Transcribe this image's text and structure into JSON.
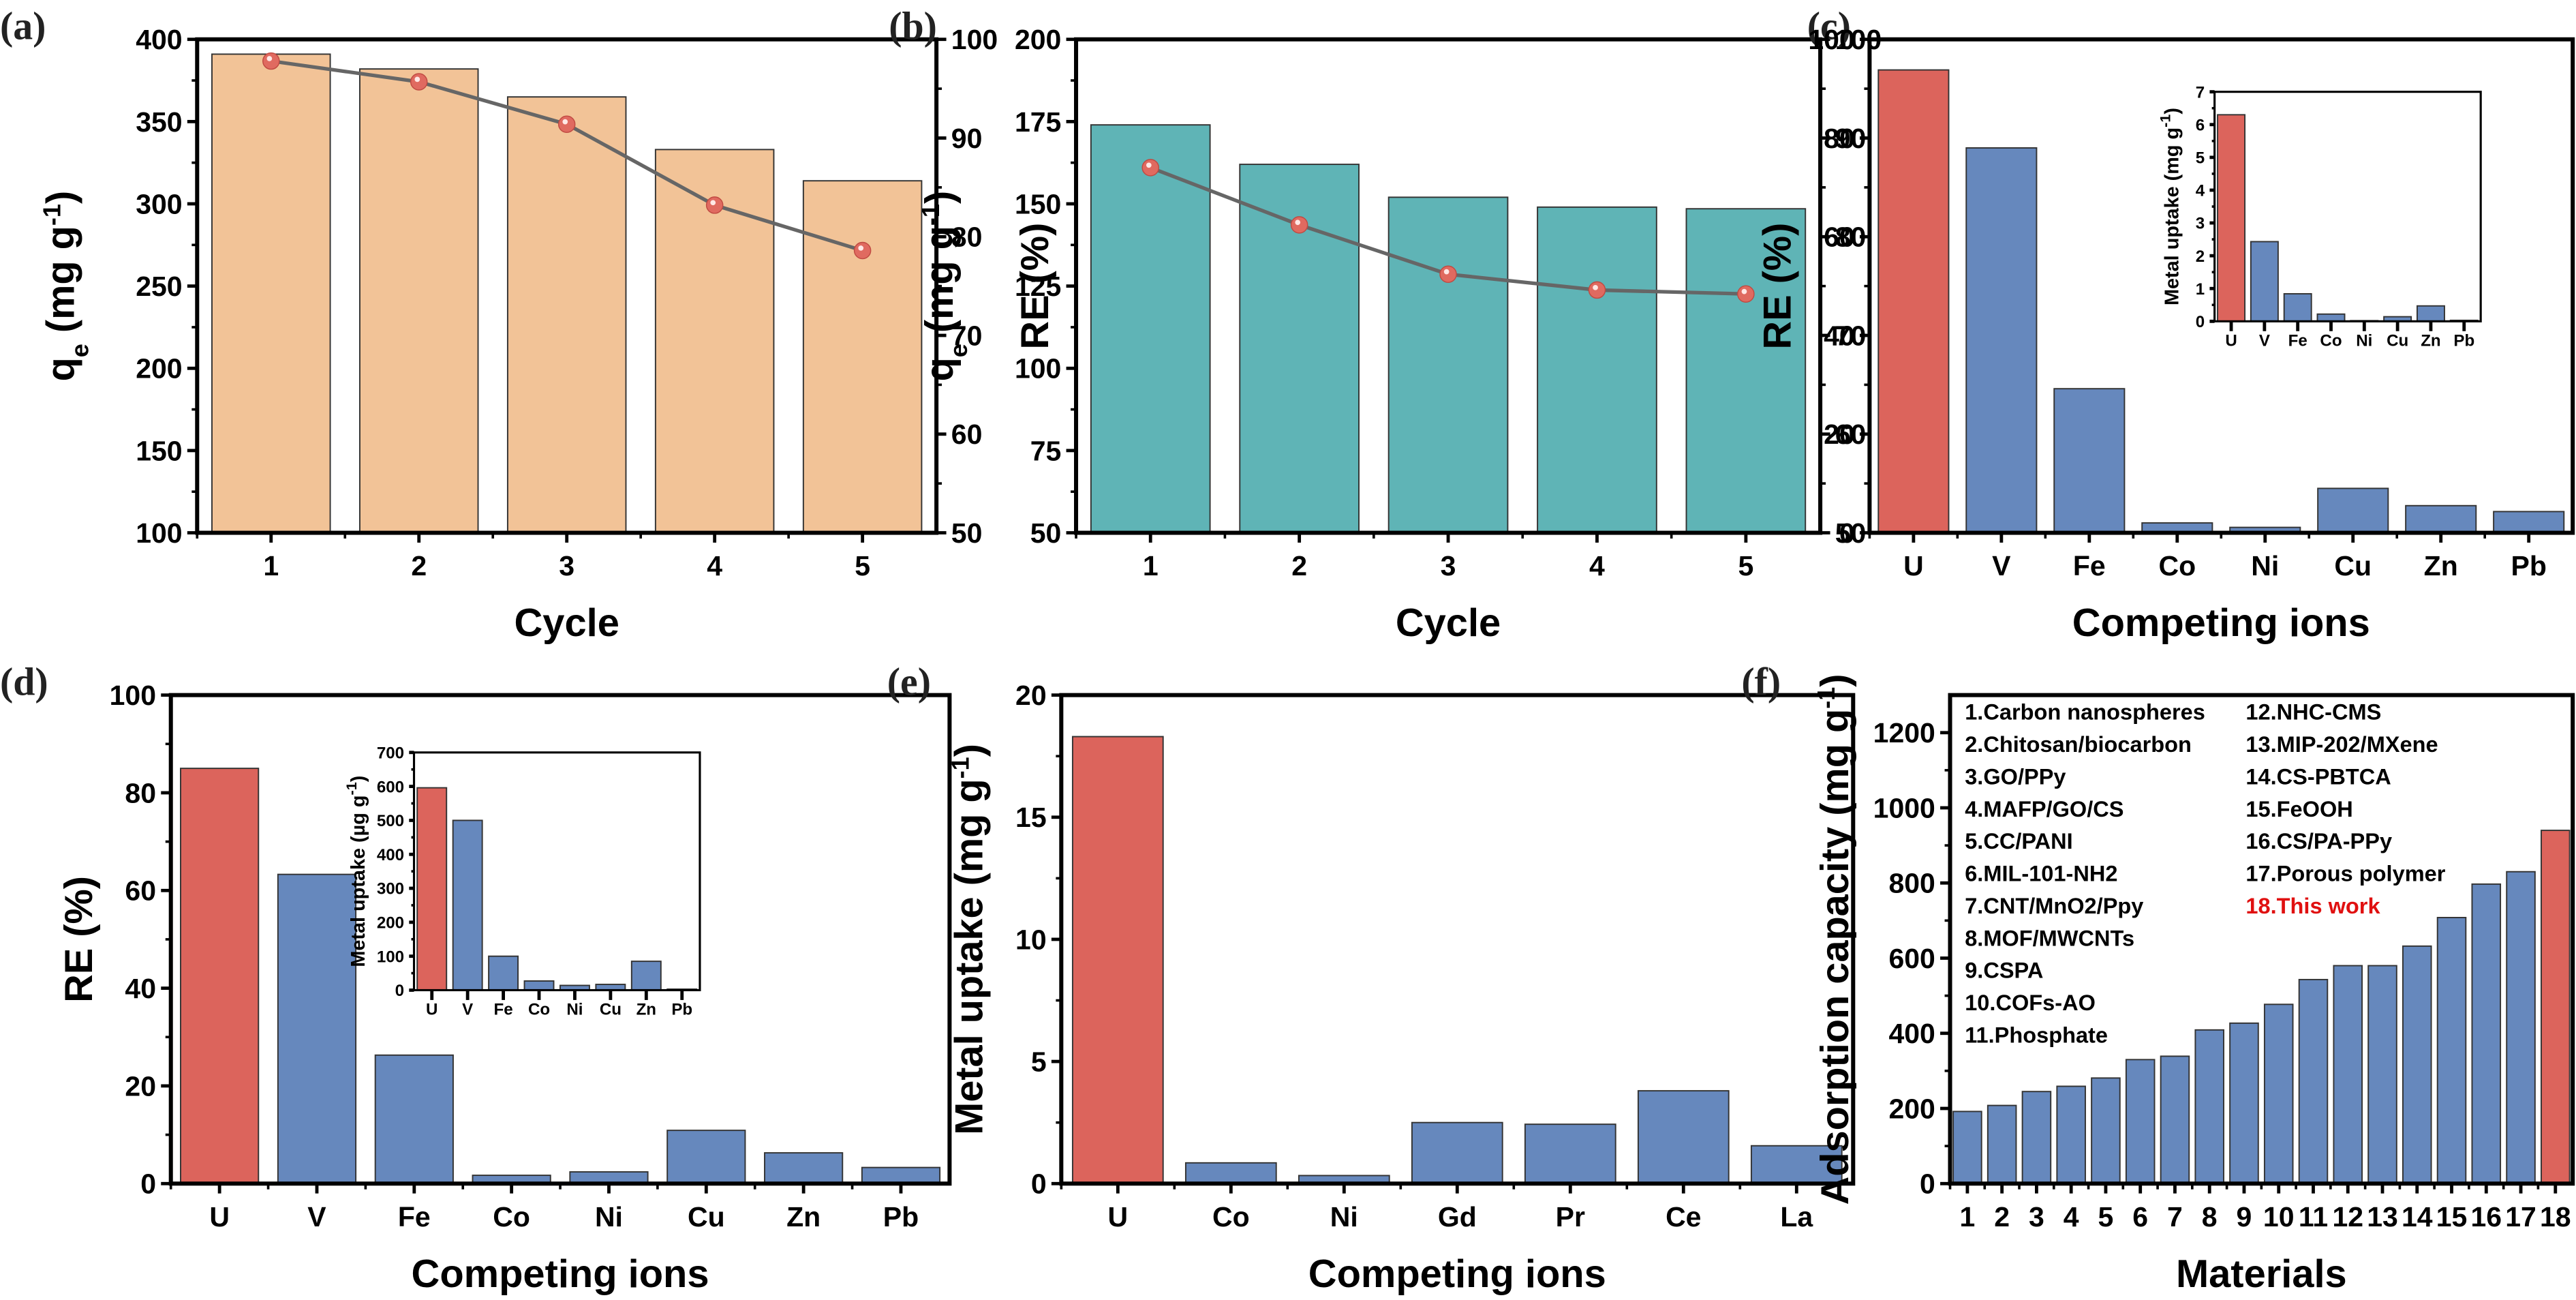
{
  "colors": {
    "peach": "#f2c397",
    "teal": "#5fb4b6",
    "red": "#dc645c",
    "blue": "#6688bd",
    "line": "#666666",
    "marker": "#e06a60",
    "highlight_text": "#e01010"
  },
  "chart_data": [
    {
      "id": "a",
      "panel_label": "(a)",
      "type": "bar",
      "title": "",
      "xlabel": "Cycle",
      "ylabel": "q",
      "ylabel_sub": "e",
      "ylabel_unit": " (mg g",
      "ylabel_sup": "-1",
      "ylabel_close": ")",
      "y2label": "RE (%)",
      "categories": [
        "1",
        "2",
        "3",
        "4",
        "5"
      ],
      "ylim": [
        100,
        400
      ],
      "yticks": [
        "100",
        "150",
        "200",
        "250",
        "300",
        "350",
        "400"
      ],
      "y2lim": [
        50,
        100
      ],
      "y2ticks": [
        "50",
        "60",
        "70",
        "80",
        "90",
        "100"
      ],
      "series": [
        {
          "name": "qe",
          "kind": "bar",
          "values": [
            391,
            382,
            365,
            333,
            314
          ]
        },
        {
          "name": "RE",
          "kind": "line",
          "axis": "right",
          "values": [
            97.8,
            95.7,
            91.4,
            83.2,
            78.6
          ]
        }
      ]
    },
    {
      "id": "b",
      "panel_label": "(b)",
      "type": "bar",
      "title": "",
      "xlabel": "Cycle",
      "ylabel": "q",
      "ylabel_sub": "e",
      "ylabel_unit": " (mg g",
      "ylabel_sup": "-1",
      "ylabel_close": ")",
      "y2label": "RE (%)",
      "categories": [
        "1",
        "2",
        "3",
        "4",
        "5"
      ],
      "ylim": [
        50,
        200
      ],
      "yticks": [
        "50",
        "75",
        "100",
        "125",
        "150",
        "175",
        "200"
      ],
      "y2lim": [
        50,
        100
      ],
      "y2ticks": [
        "50",
        "60",
        "70",
        "80",
        "90",
        "100"
      ],
      "series": [
        {
          "name": "qe",
          "kind": "bar",
          "values": [
            174,
            162,
            152,
            149,
            148.5
          ]
        },
        {
          "name": "RE",
          "kind": "line",
          "axis": "right",
          "values": [
            87.0,
            81.2,
            76.2,
            74.6,
            74.2
          ]
        }
      ]
    },
    {
      "id": "c",
      "panel_label": "(c)",
      "type": "bar",
      "title": "",
      "xlabel": "Competing ions",
      "ylabel": "RE (%)",
      "categories": [
        "U",
        "V",
        "Fe",
        "Co",
        "Ni",
        "Cu",
        "Zn",
        "Pb"
      ],
      "ylim": [
        0,
        100
      ],
      "yticks": [
        "0",
        "20",
        "40",
        "60",
        "80",
        "100"
      ],
      "values": [
        93.8,
        78.0,
        29.2,
        2.0,
        1.1,
        9.0,
        5.5,
        4.3
      ],
      "inset": {
        "ylabel": "Metal uptake (mg g",
        "ylabel_sup": "-1",
        "ylabel_close": ")",
        "categories": [
          "U",
          "V",
          "Fe",
          "Co",
          "Ni",
          "Cu",
          "Zn",
          "Pb"
        ],
        "ylim": [
          0,
          7
        ],
        "yticks": [
          "0",
          "1",
          "2",
          "3",
          "4",
          "5",
          "6",
          "7"
        ],
        "values": [
          6.3,
          2.43,
          0.84,
          0.22,
          0.02,
          0.14,
          0.47,
          0.03
        ]
      }
    },
    {
      "id": "d",
      "panel_label": "(d)",
      "type": "bar",
      "title": "",
      "xlabel": "Competing ions",
      "ylabel": "RE (%)",
      "categories": [
        "U",
        "V",
        "Fe",
        "Co",
        "Ni",
        "Cu",
        "Zn",
        "Pb"
      ],
      "ylim": [
        0,
        100
      ],
      "yticks": [
        "0",
        "20",
        "40",
        "60",
        "80",
        "100"
      ],
      "values": [
        85.0,
        63.3,
        26.3,
        1.7,
        2.4,
        10.9,
        6.3,
        3.3
      ],
      "inset": {
        "ylabel": "Metal uptake (µg g",
        "ylabel_sup": "-1",
        "ylabel_close": ")",
        "categories": [
          "U",
          "V",
          "Fe",
          "Co",
          "Ni",
          "Cu",
          "Zn",
          "Pb"
        ],
        "ylim": [
          0,
          700
        ],
        "yticks": [
          "0",
          "100",
          "200",
          "300",
          "400",
          "500",
          "600",
          "700"
        ],
        "values": [
          596,
          500,
          100,
          27,
          14,
          17,
          85,
          3
        ]
      }
    },
    {
      "id": "e",
      "panel_label": "(e)",
      "type": "bar",
      "title": "",
      "xlabel": "Competing ions",
      "ylabel": "Metal uptake (mg g",
      "ylabel_sup": "-1",
      "ylabel_close": ")",
      "categories": [
        "U",
        "Co",
        "Ni",
        "Gd",
        "Pr",
        "Ce",
        "La"
      ],
      "ylim": [
        0,
        20
      ],
      "yticks": [
        "0",
        "5",
        "10",
        "15",
        "20"
      ],
      "values": [
        18.3,
        0.85,
        0.33,
        2.5,
        2.43,
        3.8,
        1.55
      ]
    },
    {
      "id": "f",
      "panel_label": "(f)",
      "type": "bar",
      "title": "",
      "xlabel": "Materials",
      "ylabel": "Adsorption capacity (mg g",
      "ylabel_sup": "-1",
      "ylabel_close": ")",
      "categories": [
        "1",
        "2",
        "3",
        "4",
        "5",
        "6",
        "7",
        "8",
        "9",
        "10",
        "11",
        "12",
        "13",
        "14",
        "15",
        "16",
        "17",
        "18"
      ],
      "ylim": [
        0,
        1300
      ],
      "yticks": [
        "0",
        "200",
        "400",
        "600",
        "800",
        "1000",
        "1200"
      ],
      "values": [
        192,
        208,
        245,
        259,
        281,
        330,
        339,
        409,
        427,
        477,
        543,
        580,
        580,
        632,
        708,
        797,
        830,
        940
      ],
      "legend": [
        "1.Carbon nanospheres",
        "2.Chitosan/biocarbon",
        "3.GO/PPy",
        "4.MAFP/GO/CS",
        "5.CC/PANI",
        "6.MIL-101-NH2",
        "7.CNT/MnO2/Ppy",
        "8.MOF/MWCNTs",
        "9.CSPA",
        "10.COFs-AO",
        "11.Phosphate",
        "12.NHC-CMS",
        "13.MIP-202/MXene",
        "14.CS-PBTCA",
        "15.FeOOH",
        "16.CS/PA-PPy",
        "17.Porous polymer",
        "18.This work"
      ],
      "legend_placement": "top-left"
    }
  ]
}
